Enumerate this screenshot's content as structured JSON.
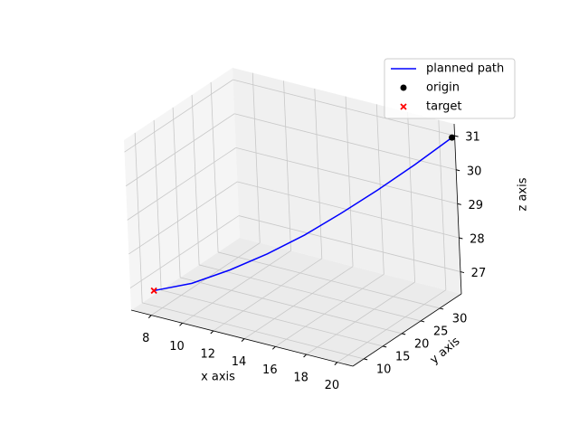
{
  "chart_data": {
    "type": "line3d",
    "xlabel": "x axis",
    "ylabel": "y axis",
    "zlabel": "z axis",
    "xlim": [
      6.7,
      21
    ],
    "ylim": [
      7.1,
      35.7
    ],
    "zlim": [
      26.35,
      31.35
    ],
    "xticks": [
      8,
      10,
      12,
      14,
      16,
      18,
      20
    ],
    "yticks": [
      10,
      15,
      20,
      25,
      30
    ],
    "zticks": [
      27,
      28,
      29,
      30,
      31
    ],
    "grid": true,
    "legend": "upper right",
    "series": [
      {
        "name": "planned path",
        "kind": "line",
        "color": "#0000ff",
        "x": [
          7.5,
          9.2,
          10.9,
          12.6,
          14.3,
          15.9,
          17.6,
          19.3,
          21
        ],
        "y": [
          10,
          13.1,
          16.3,
          19.4,
          22.5,
          25.6,
          28.8,
          31.9,
          35
        ],
        "z": [
          26.8,
          26.98,
          27.33,
          27.77,
          28.29,
          28.87,
          29.53,
          30.24,
          31
        ]
      },
      {
        "name": "origin",
        "kind": "dot",
        "color": "#000000",
        "x": [
          21
        ],
        "y": [
          35
        ],
        "z": [
          31
        ]
      },
      {
        "name": "target",
        "kind": "cross",
        "color": "#ff0000",
        "x": [
          7.5
        ],
        "y": [
          10
        ],
        "z": [
          26.8
        ]
      }
    ]
  }
}
